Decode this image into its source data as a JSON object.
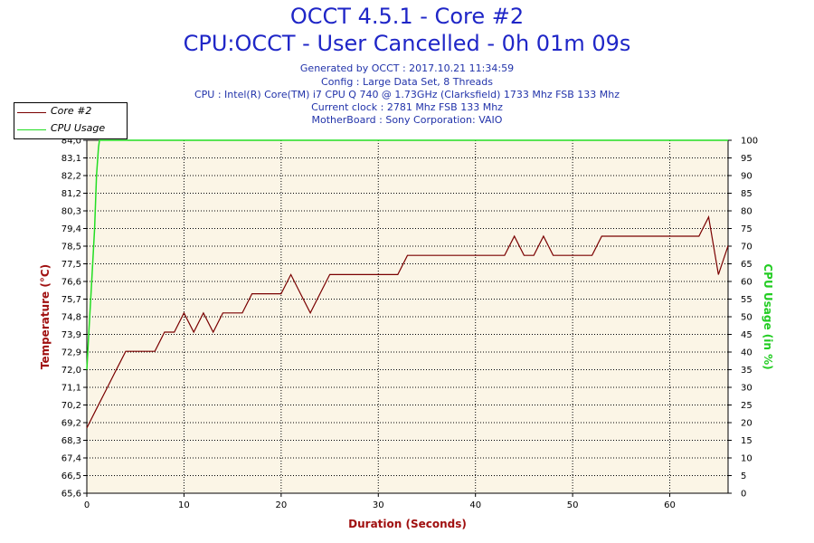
{
  "header": {
    "title": "OCCT 4.5.1 - Core #2",
    "subtitle": "CPU:OCCT - User Cancelled - 0h 01m 09s",
    "info_lines": [
      "Generated by OCCT : 2017.10.21 11:34:59",
      "Config : Large Data Set, 8 Threads",
      "CPU : Intel(R) Core(TM) i7 CPU Q 740 @ 1.73GHz (Clarksfield) 1733 Mhz FSB 133 Mhz",
      "Current clock : 2781 Mhz FSB 133 Mhz",
      "MotherBoard : Sony Corporation: VAIO"
    ]
  },
  "colors": {
    "title": "#1f26c7",
    "info": "#2233aa",
    "axis_label_left": "#a01010",
    "axis_label_right": "#22cc22",
    "core_series": "#7a0000",
    "cpu_series": "#22dd22",
    "plot_background": "#fbf5e6",
    "grid": "#000000"
  },
  "chart_data": {
    "type": "line",
    "xlabel": "Duration (Seconds)",
    "ylabel": "Temperature (°C)",
    "y2label": "CPU Usage (in %)",
    "xlim": [
      0,
      66
    ],
    "ylim": [
      65.6,
      84.0
    ],
    "y2lim": [
      0,
      100
    ],
    "x_ticks": [
      "0",
      "10",
      "20",
      "30",
      "40",
      "50",
      "60"
    ],
    "y_ticks": [
      "65,6",
      "66,5",
      "67,4",
      "68,3",
      "69,2",
      "70,2",
      "71,1",
      "72,0",
      "72,9",
      "73,9",
      "74,8",
      "75,7",
      "76,6",
      "77,5",
      "78,5",
      "79,4",
      "80,3",
      "81,2",
      "82,2",
      "83,1",
      "84,0"
    ],
    "y2_ticks": [
      "0",
      "5",
      "10",
      "15",
      "20",
      "25",
      "30",
      "35",
      "40",
      "45",
      "50",
      "55",
      "60",
      "65",
      "70",
      "75",
      "80",
      "85",
      "90",
      "95",
      "100"
    ],
    "grid": true,
    "legend_position": "top-left",
    "series": [
      {
        "name": "Core #2",
        "axis": "left",
        "x": [
          0,
          1,
          2,
          3,
          4,
          5,
          6,
          7,
          8,
          9,
          10,
          11,
          12,
          13,
          14,
          15,
          16,
          17,
          18,
          19,
          20,
          21,
          22,
          23,
          24,
          25,
          26,
          27,
          28,
          29,
          30,
          31,
          32,
          33,
          34,
          35,
          36,
          37,
          38,
          39,
          40,
          41,
          42,
          43,
          44,
          45,
          46,
          47,
          48,
          49,
          50,
          51,
          52,
          53,
          54,
          55,
          56,
          57,
          58,
          59,
          60,
          61,
          62,
          63,
          64,
          65,
          66
        ],
        "values": [
          69,
          70,
          71,
          72,
          73,
          73,
          73,
          73,
          74,
          74,
          75,
          74,
          75,
          74,
          75,
          75,
          75,
          76,
          76,
          76,
          76,
          77,
          76,
          75,
          76,
          77,
          77,
          77,
          77,
          77,
          77,
          77,
          77,
          78,
          78,
          78,
          78,
          78,
          78,
          78,
          78,
          78,
          78,
          78,
          79,
          78,
          78,
          79,
          78,
          78,
          78,
          78,
          78,
          79,
          79,
          79,
          79,
          79,
          79,
          79,
          79,
          79,
          79,
          79,
          80,
          77,
          78.5
        ]
      },
      {
        "name": "CPU Usage",
        "axis": "right",
        "x": [
          0,
          0.2,
          0.5,
          0.8,
          1.0,
          1.2,
          1.3,
          66
        ],
        "values": [
          35,
          45,
          60,
          75,
          90,
          98,
          100,
          100
        ]
      }
    ]
  }
}
